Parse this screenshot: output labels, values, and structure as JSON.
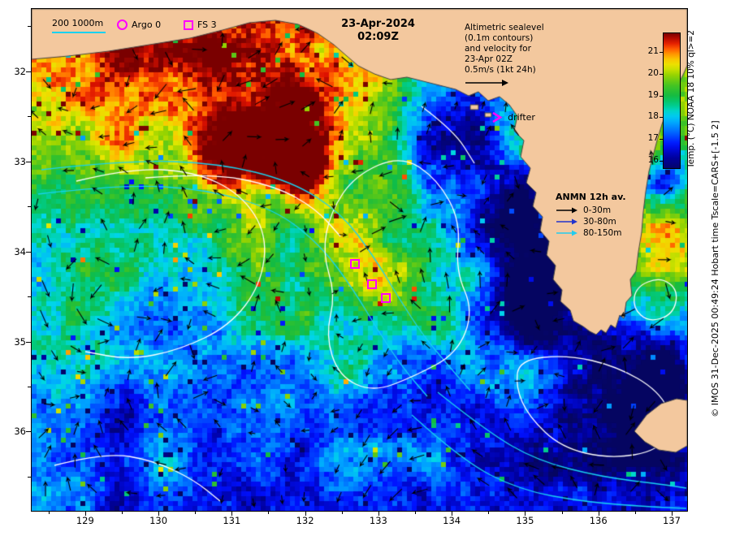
{
  "title": {
    "date": "23-Apr-2024",
    "time": "02:09Z"
  },
  "legend": {
    "bathy": "200 1000m",
    "argo": "Argo 0",
    "fs": "FS 3"
  },
  "note": {
    "lines": [
      "Altimetric sealevel",
      "(0.1m contours)",
      "and velocity for",
      "23-Apr 02Z",
      "0.5m/s (1kt 24h)"
    ]
  },
  "drifter_label": "drifter",
  "anmn": {
    "title": "ANMN 12h av.",
    "items": [
      {
        "label": "0-30m",
        "color": "#000000"
      },
      {
        "label": "30-80m",
        "color": "#2233cc"
      },
      {
        "label": "80-150m",
        "color": "#22ccee"
      }
    ]
  },
  "colorbar": {
    "title": "Temp. (°C) NOAA 18 10% ql>=2",
    "ticks": [
      21,
      20,
      19,
      18,
      17,
      16
    ],
    "tmin": 15.7,
    "tmax": 21.9
  },
  "copyright": "© IMOS 31-Dec-2025 00:49:24 Hobart time Tscale=CARS+[-1.5 2]",
  "axes": {
    "x_ticks": [
      129,
      130,
      131,
      132,
      133,
      134,
      135,
      136,
      137
    ],
    "y_ticks": [
      32,
      33,
      34,
      35,
      36
    ],
    "x_range": [
      128.26,
      137.2
    ],
    "y_range": [
      31.3,
      36.87
    ]
  },
  "markers": {
    "fs_sites": [
      {
        "lon": 132.68,
        "lat": -34.14
      },
      {
        "lon": 132.91,
        "lat": -34.36
      },
      {
        "lon": 133.1,
        "lat": -34.52
      }
    ],
    "drifter": {
      "lon": 134.62,
      "lat": -32.52
    }
  },
  "colors": {
    "land": "#f3c89e",
    "coastline": "#444444",
    "marker": "#ff00ff",
    "sealevel_contour": "#ffffff",
    "bathy_line": "#19d2f0",
    "arrow": "#000000"
  }
}
